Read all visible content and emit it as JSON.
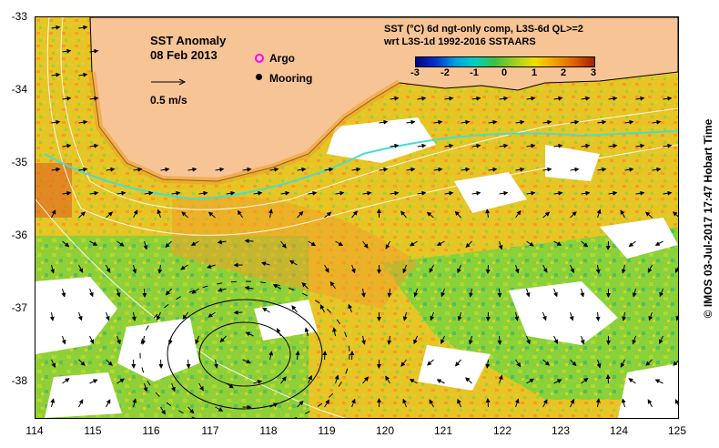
{
  "map": {
    "title": "SST Anomaly",
    "date": "08 Feb 2013",
    "scale_label": "0.5 m/s",
    "legend": [
      {
        "label": "Argo",
        "color": "#ff00ff",
        "marker": "circle-outline"
      },
      {
        "label": "Mooring",
        "color": "#000000",
        "marker": "filled-dot"
      }
    ],
    "product_line1": "SST (°C) 6d ngt-only comp, L3S-6d QL>=2",
    "product_line2": "wrt L3S-1d 1992-2016 SSTAARS",
    "credit": "© IMOS 03-Jul-2017 17:47 Hobart Time",
    "x_ticks": [
      "114",
      "115",
      "116",
      "117",
      "118",
      "119",
      "120",
      "121",
      "122",
      "123",
      "124",
      "125"
    ],
    "y_ticks": [
      "-33",
      "-34",
      "-35",
      "-36",
      "-37",
      "-38"
    ],
    "colorbar": {
      "ticks": [
        "-3",
        "-2",
        "-1",
        "0",
        "1",
        "2",
        "3"
      ],
      "range": [
        -3,
        3
      ],
      "colors": [
        "#000080",
        "#0033cc",
        "#00a0e0",
        "#00d0c0",
        "#40c040",
        "#a0d020",
        "#f0e000",
        "#f0a000",
        "#e06000",
        "#a02000"
      ]
    },
    "colors": {
      "land": "#f7c496",
      "no_data": "#ffffff",
      "anomaly_green": "#7fd23c",
      "anomaly_yellow": "#e8d21e",
      "anomaly_orange": "#f0a028",
      "front_cyan": "#40e0d0"
    }
  }
}
